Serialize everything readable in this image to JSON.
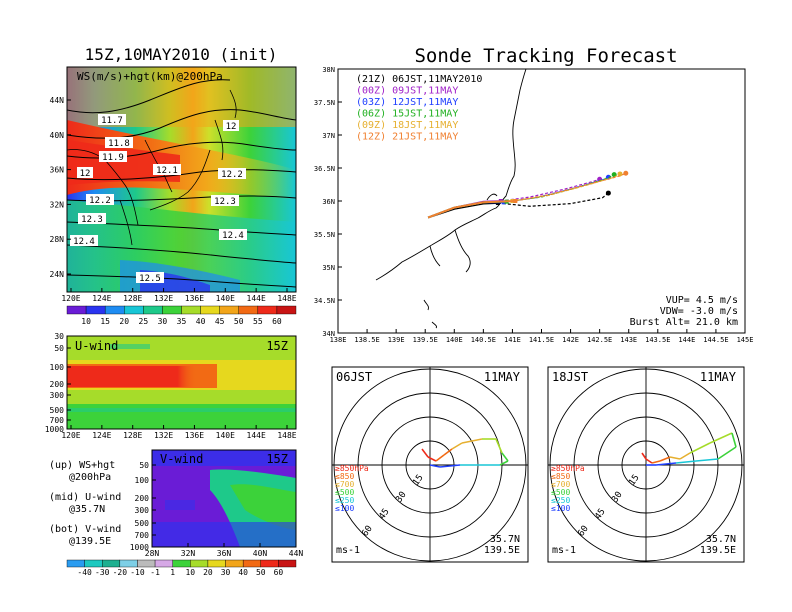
{
  "left_title": "15Z,10MAY2010 (init)",
  "right_title": "Sonde Tracking Forecast",
  "colors": {
    "shade_scale": [
      "#6a1cd6",
      "#2a34f0",
      "#1e8cf2",
      "#18c6d6",
      "#1ec98a",
      "#3cd23a",
      "#a6dc2a",
      "#e6d81e",
      "#f2a51a",
      "#f26a14",
      "#ee2a1a",
      "#c81414"
    ],
    "track_21z": "#000000",
    "track_00z": "#a020c8",
    "track_03z": "#2040ff",
    "track_06z": "#20b020",
    "track_09z": "#e6b030",
    "track_12z": "#f08030"
  },
  "chart_data": [
    {
      "type": "heatmap",
      "title": "WS(m/s)+hgt(km)@200hPa",
      "x_ticks": [
        "120E",
        "124E",
        "128E",
        "132E",
        "136E",
        "140E",
        "144E",
        "148E"
      ],
      "y_ticks": [
        "24N",
        "28N",
        "32N",
        "36N",
        "40N",
        "44N"
      ],
      "contour_labels": [
        "11.7",
        "11.8",
        "11.9",
        "12",
        "12",
        "12.1",
        "12.2",
        "12.2",
        "12.3",
        "12.3",
        "12.4",
        "12.4",
        "12.5"
      ],
      "colorbar_ticks": [
        "10",
        "15",
        "20",
        "25",
        "30",
        "35",
        "40",
        "45",
        "50",
        "55",
        "60"
      ]
    },
    {
      "type": "heatmap",
      "title": "U-wind",
      "time_label": "15Z",
      "x_ticks": [
        "120E",
        "124E",
        "128E",
        "132E",
        "136E",
        "140E",
        "144E",
        "148E"
      ],
      "y_ticks": [
        "30",
        "50",
        "100",
        "200",
        "300",
        "500",
        "700",
        "1000"
      ]
    },
    {
      "type": "heatmap",
      "title": "V-wind",
      "time_label": "15Z",
      "x_ticks": [
        "28N",
        "32N",
        "36N",
        "40N",
        "44N"
      ],
      "y_ticks": [
        "50",
        "100",
        "200",
        "300",
        "500",
        "700",
        "1000"
      ],
      "colorbar_ticks": [
        "-40",
        "-30",
        "-20",
        "-10",
        "-1",
        "1",
        "10",
        "20",
        "30",
        "40",
        "50",
        "60"
      ]
    },
    {
      "type": "line",
      "title": "Sonde Tracking Forecast",
      "x_ticks": [
        "138E",
        "138.5E",
        "139E",
        "139.5E",
        "140E",
        "140.5E",
        "141E",
        "141.5E",
        "142E",
        "142.5E",
        "143E",
        "143.5E",
        "144E",
        "144.5E",
        "145E"
      ],
      "y_ticks": [
        "34N",
        "34.5N",
        "35N",
        "35.5N",
        "36N",
        "36.5N",
        "37N",
        "37.5N",
        "38N"
      ],
      "xlim": [
        138,
        145
      ],
      "ylim": [
        34,
        38
      ],
      "series": [
        {
          "name": "(21Z) 06JST,11MAY2010",
          "x": [
            139.55,
            140.0,
            140.5,
            140.75,
            141.3,
            142.0,
            142.55,
            142.65
          ],
          "y": [
            35.75,
            35.88,
            35.96,
            35.97,
            35.92,
            35.96,
            36.05,
            36.12
          ]
        },
        {
          "name": "(00Z) 09JST,11MAY",
          "x": [
            139.55,
            140.0,
            140.5,
            140.8,
            141.3,
            141.9,
            142.4,
            142.5
          ],
          "y": [
            35.75,
            35.9,
            35.99,
            36.0,
            36.06,
            36.18,
            36.3,
            36.33
          ]
        },
        {
          "name": "(03Z) 12JST,11MAY",
          "x": [
            139.55,
            140.0,
            140.5,
            140.85,
            141.4,
            142.0,
            142.55,
            142.65
          ],
          "y": [
            35.75,
            35.9,
            35.98,
            35.98,
            36.05,
            36.18,
            36.32,
            36.36
          ]
        },
        {
          "name": "(06Z) 15JST,11MAY",
          "x": [
            139.55,
            140.0,
            140.5,
            140.9,
            141.5,
            142.1,
            142.65,
            142.75
          ],
          "y": [
            35.75,
            35.9,
            35.98,
            35.99,
            36.06,
            36.2,
            36.35,
            36.4
          ]
        },
        {
          "name": "(09Z) 18JST,11MAY",
          "x": [
            139.55,
            140.0,
            140.5,
            141.0,
            141.6,
            142.2,
            142.75,
            142.85
          ],
          "y": [
            35.75,
            35.9,
            35.98,
            36.0,
            36.08,
            36.22,
            36.36,
            36.41
          ]
        },
        {
          "name": "(12Z) 21JST,11MAY",
          "x": [
            139.55,
            140.0,
            140.5,
            141.05,
            141.65,
            142.25,
            142.85,
            142.95
          ],
          "y": [
            35.75,
            35.9,
            35.98,
            36.0,
            36.1,
            36.24,
            36.38,
            36.42
          ]
        }
      ],
      "annotations": [
        "VUP= 4.5 m/s",
        "VDW= -3.0 m/s",
        "Burst Alt= 21.0 km"
      ]
    },
    {
      "type": "line",
      "title": "06JST",
      "date": "11MAY",
      "ring_labels": [
        "15",
        "30",
        "45",
        "60"
      ],
      "legend": [
        "≥850hPa",
        "≤850",
        "≤700",
        "≤500",
        "≤250",
        "≤100"
      ],
      "location": [
        "35.7N",
        "139.5E"
      ],
      "unit": "ms-1"
    },
    {
      "type": "line",
      "title": "18JST",
      "date": "11MAY",
      "ring_labels": [
        "15",
        "30",
        "45",
        "60"
      ],
      "legend": [
        "≥850hPa",
        "≤850",
        "≤700",
        "≤500",
        "≤250",
        "≤100"
      ],
      "location": [
        "35.7N",
        "139.5E"
      ],
      "unit": "ms-1"
    }
  ],
  "caption_lines": [
    [
      "(up) WS+hgt",
      "@200hPa"
    ],
    [
      "(mid) U-wind",
      "@35.7N"
    ],
    [
      "(bot) V-wind",
      "@139.5E"
    ]
  ]
}
